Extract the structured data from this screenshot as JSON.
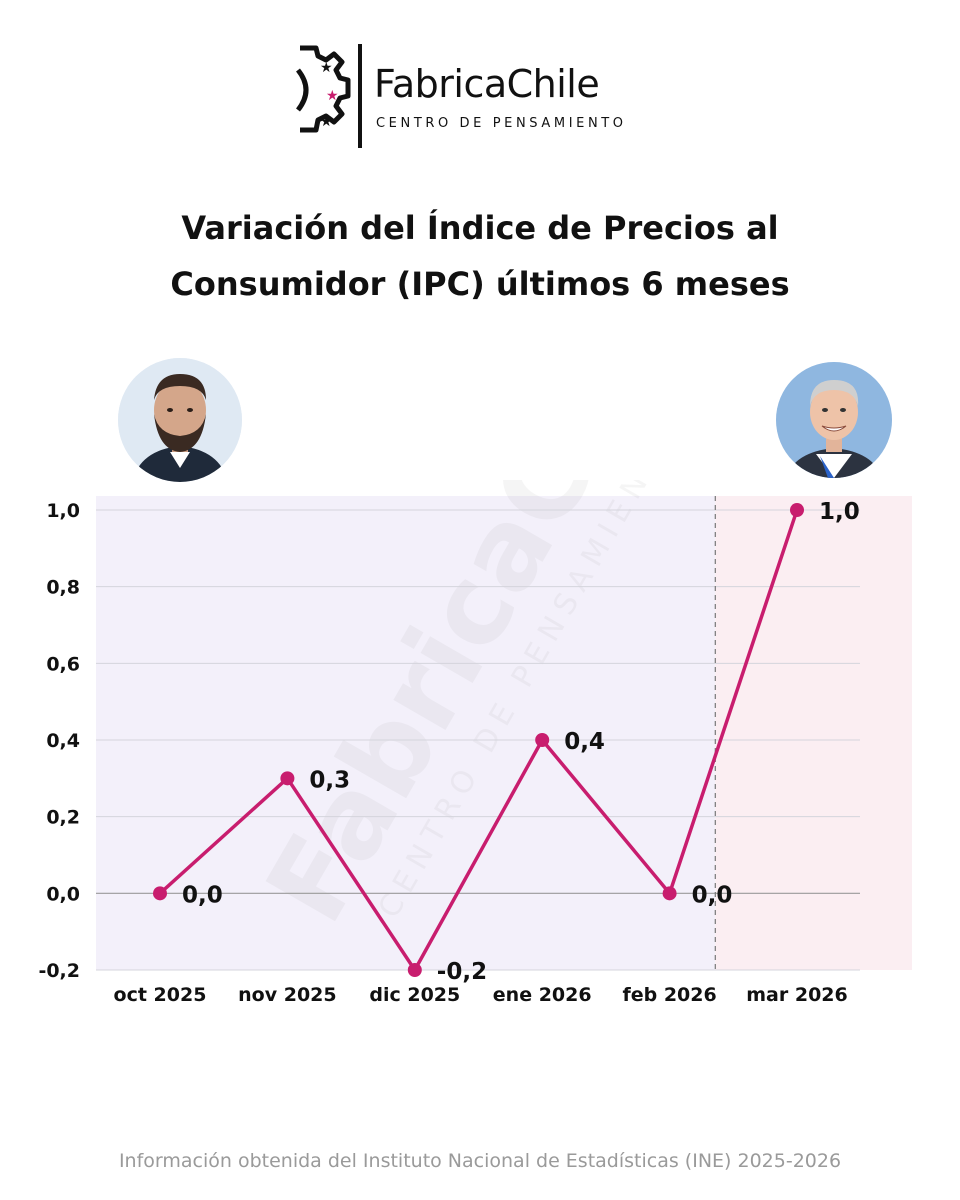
{
  "brand": {
    "name": "FabricaChile",
    "tagline": "CENTRO DE PENSAMIENTO",
    "accent_color": "#c81d6e",
    "icon": "gear-stars-logo-icon"
  },
  "header": {
    "title_line1": "Variación del Índice de Precios al",
    "title_line2": "Consumidor (IPC) últimos 6 meses"
  },
  "avatars": {
    "left": {
      "icon": "portrait-bearded-man-icon"
    },
    "right": {
      "icon": "portrait-smiling-man-icon"
    }
  },
  "chart_data": {
    "type": "line",
    "title": "Variación del Índice de Precios al Consumidor (IPC) últimos 6 meses",
    "categories": [
      "oct 2025",
      "nov 2025",
      "dic 2025",
      "ene 2026",
      "feb 2026",
      "mar 2026"
    ],
    "values": [
      0.0,
      0.3,
      -0.2,
      0.4,
      0.0,
      1.0
    ],
    "value_labels": [
      "0,0",
      "0,3",
      "-0,2",
      "0,4",
      "0,0",
      "1,0"
    ],
    "y_ticks": [
      1.0,
      0.8,
      0.6,
      0.4,
      0.2,
      0.0,
      -0.2
    ],
    "y_tick_labels": [
      "1,0",
      "0,8",
      "0,6",
      "0,4",
      "0,2",
      "0,0",
      "-0,2"
    ],
    "ylim": [
      -0.2,
      1.0
    ],
    "grid": true,
    "line_color": "#c81d6e",
    "background_color_first_period": "#f3f0fa",
    "background_color_last_period": "#fbeef2",
    "divider_between": [
      "feb 2026",
      "mar 2026"
    ]
  },
  "watermark": {
    "text": "FabricaChile",
    "subtext": "CENTRO DE PENSAMIENTO"
  },
  "footer": {
    "source": "Información obtenida del Instituto Nacional de Estadísticas (INE) 2025-2026"
  }
}
